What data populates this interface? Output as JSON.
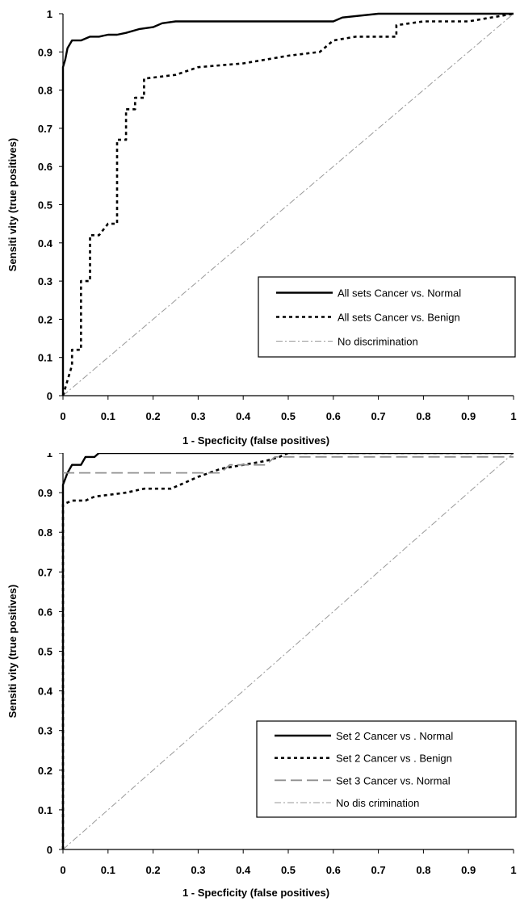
{
  "chart_data": [
    {
      "type": "line",
      "xlabel": "1 - Specficity (false positives)",
      "ylabel": "Sensiti vity (true positives)",
      "xlim": [
        0,
        1
      ],
      "ylim": [
        0,
        1
      ],
      "x_ticks": [
        "0",
        "0.1",
        "0.2",
        "0.3",
        "0.4",
        "0.5",
        "0.6",
        "0.7",
        "0.8",
        "0.9",
        "1"
      ],
      "y_ticks": [
        "0",
        "0.1",
        "0.2",
        "0.3",
        "0.4",
        "0.5",
        "0.6",
        "0.7",
        "0.8",
        "0.9",
        "1"
      ],
      "grid": false,
      "legend_position": "bottom-right",
      "series": [
        {
          "name": "All sets Cancer vs. Normal",
          "style": "solid",
          "color": "#000000",
          "points": [
            [
              0,
              0
            ],
            [
              0,
              0.86
            ],
            [
              0.005,
              0.88
            ],
            [
              0.01,
              0.91
            ],
            [
              0.02,
              0.93
            ],
            [
              0.04,
              0.93
            ],
            [
              0.06,
              0.94
            ],
            [
              0.08,
              0.94
            ],
            [
              0.1,
              0.945
            ],
            [
              0.12,
              0.945
            ],
            [
              0.14,
              0.95
            ],
            [
              0.17,
              0.96
            ],
            [
              0.2,
              0.965
            ],
            [
              0.22,
              0.975
            ],
            [
              0.25,
              0.98
            ],
            [
              0.35,
              0.98
            ],
            [
              0.5,
              0.98
            ],
            [
              0.6,
              0.98
            ],
            [
              0.62,
              0.99
            ],
            [
              0.7,
              1
            ],
            [
              1,
              1
            ]
          ]
        },
        {
          "name": "All sets Cancer vs. Benign",
          "style": "dotted",
          "color": "#000000",
          "points": [
            [
              0,
              0
            ],
            [
              0.02,
              0.08
            ],
            [
              0.02,
              0.12
            ],
            [
              0.04,
              0.12
            ],
            [
              0.04,
              0.3
            ],
            [
              0.06,
              0.3
            ],
            [
              0.06,
              0.42
            ],
            [
              0.08,
              0.42
            ],
            [
              0.1,
              0.45
            ],
            [
              0.12,
              0.45
            ],
            [
              0.12,
              0.67
            ],
            [
              0.14,
              0.67
            ],
            [
              0.14,
              0.75
            ],
            [
              0.16,
              0.75
            ],
            [
              0.16,
              0.78
            ],
            [
              0.18,
              0.78
            ],
            [
              0.18,
              0.83
            ],
            [
              0.25,
              0.84
            ],
            [
              0.3,
              0.86
            ],
            [
              0.4,
              0.87
            ],
            [
              0.45,
              0.88
            ],
            [
              0.5,
              0.89
            ],
            [
              0.57,
              0.9
            ],
            [
              0.6,
              0.93
            ],
            [
              0.65,
              0.94
            ],
            [
              0.74,
              0.94
            ],
            [
              0.74,
              0.97
            ],
            [
              0.8,
              0.98
            ],
            [
              0.9,
              0.98
            ],
            [
              1,
              1
            ]
          ]
        },
        {
          "name": "No discrimination",
          "style": "dashdot",
          "color": "#999999",
          "points": [
            [
              0,
              0
            ],
            [
              1,
              1
            ]
          ]
        }
      ]
    },
    {
      "type": "line",
      "xlabel": "1 - Specficity (false positives)",
      "ylabel": "Sensiti vity (true positives)",
      "xlim": [
        0,
        1
      ],
      "ylim": [
        0,
        1
      ],
      "x_ticks": [
        "0",
        "0.1",
        "0.2",
        "0.3",
        "0.4",
        "0.5",
        "0.6",
        "0.7",
        "0.8",
        "0.9",
        "1"
      ],
      "y_ticks": [
        "0",
        "0.1",
        "0.2",
        "0.3",
        "0.4",
        "0.5",
        "0.6",
        "0.7",
        "0.8",
        "0.9",
        "1"
      ],
      "grid": false,
      "legend_position": "bottom-right",
      "series": [
        {
          "name": "Set 2 Cancer vs . Normal",
          "style": "solid",
          "color": "#000000",
          "points": [
            [
              0,
              0
            ],
            [
              0,
              0.92
            ],
            [
              0.01,
              0.95
            ],
            [
              0.02,
              0.97
            ],
            [
              0.04,
              0.97
            ],
            [
              0.05,
              0.99
            ],
            [
              0.07,
              0.99
            ],
            [
              0.08,
              1
            ],
            [
              1,
              1
            ]
          ]
        },
        {
          "name": "Set 2 Cancer vs . Benign",
          "style": "dotted",
          "color": "#000000",
          "points": [
            [
              0,
              0
            ],
            [
              0,
              0.87
            ],
            [
              0.02,
              0.88
            ],
            [
              0.05,
              0.88
            ],
            [
              0.07,
              0.89
            ],
            [
              0.14,
              0.9
            ],
            [
              0.18,
              0.91
            ],
            [
              0.24,
              0.91
            ],
            [
              0.3,
              0.94
            ],
            [
              0.35,
              0.96
            ],
            [
              0.4,
              0.97
            ],
            [
              0.45,
              0.98
            ],
            [
              0.48,
              0.99
            ],
            [
              0.5,
              1
            ],
            [
              1,
              1
            ]
          ]
        },
        {
          "name": "Set 3 Cancer vs. Normal",
          "style": "dashed",
          "color": "#909090",
          "points": [
            [
              0,
              0.95
            ],
            [
              0.35,
              0.95
            ],
            [
              0.37,
              0.97
            ],
            [
              0.45,
              0.97
            ],
            [
              0.47,
              0.99
            ],
            [
              1,
              0.99
            ]
          ]
        },
        {
          "name": "No dis crimination",
          "style": "dashdot",
          "color": "#999999",
          "points": [
            [
              0,
              0
            ],
            [
              1,
              1
            ]
          ]
        }
      ]
    }
  ]
}
